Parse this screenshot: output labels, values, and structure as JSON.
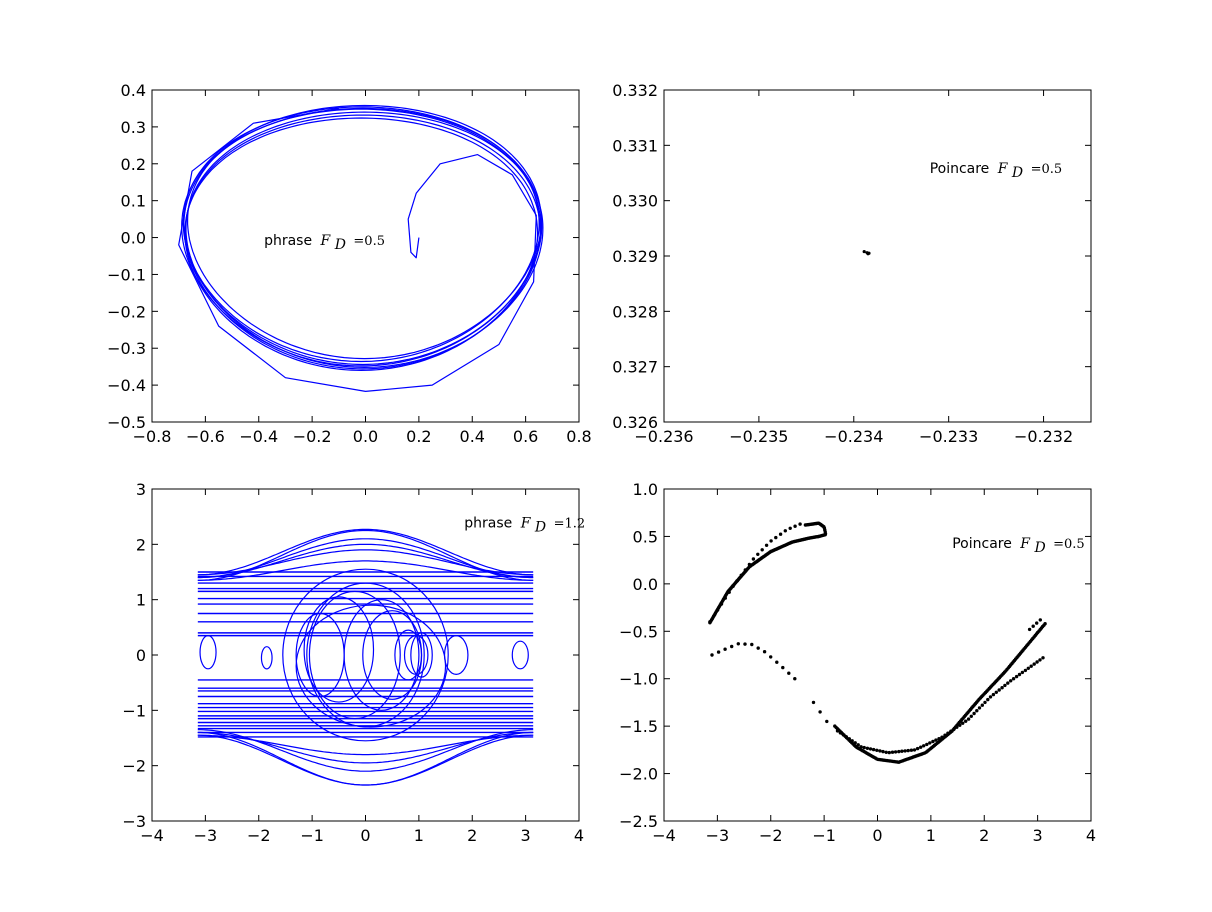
{
  "chart_data": [
    {
      "id": "phase-fd-0.5",
      "type": "line",
      "color": "#0000ff",
      "xlim": [
        -0.8,
        0.8
      ],
      "ylim": [
        -0.5,
        0.4
      ],
      "xticks": [
        "−0.8",
        "−0.6",
        "−0.4",
        "−0.2",
        "0.0",
        "0.2",
        "0.4",
        "0.6",
        "0.8"
      ],
      "yticks": [
        "−0.5",
        "−0.4",
        "−0.3",
        "−0.2",
        "−0.1",
        "0.0",
        "0.1",
        "0.2",
        "0.3",
        "0.4"
      ],
      "annotation": {
        "word": "phrase",
        "symbol": "F",
        "subscript": "D",
        "eq": "=0.5",
        "x": -0.38,
        "y": -0.02
      },
      "attractor": {
        "center_x": -0.01,
        "center_y": 0.0,
        "rx": 0.67,
        "ry": 0.348
      },
      "transient": [
        [
          0.2,
          0.0
        ],
        [
          0.19,
          -0.055
        ],
        [
          0.17,
          -0.04
        ],
        [
          0.16,
          0.05
        ],
        [
          0.19,
          0.12
        ],
        [
          0.28,
          0.2
        ],
        [
          0.42,
          0.225
        ],
        [
          0.55,
          0.17
        ],
        [
          0.64,
          0.06
        ],
        [
          0.63,
          -0.12
        ],
        [
          0.5,
          -0.29
        ],
        [
          0.25,
          -0.4
        ],
        [
          0.0,
          -0.417
        ],
        [
          -0.3,
          -0.38
        ],
        [
          -0.55,
          -0.24
        ],
        [
          -0.7,
          -0.02
        ],
        [
          -0.65,
          0.18
        ],
        [
          -0.42,
          0.31
        ],
        [
          -0.1,
          0.35
        ]
      ]
    },
    {
      "id": "poincare-fd-0.5",
      "type": "scatter",
      "color": "#000000",
      "xlim": [
        -0.236,
        -0.2315
      ],
      "ylim": [
        0.326,
        0.332
      ],
      "xticks": [
        "−0.236",
        "−0.235",
        "−0.234",
        "−0.233",
        "−0.232"
      ],
      "yticks": [
        "0.326",
        "0.327",
        "0.328",
        "0.329",
        "0.330",
        "0.331",
        "0.332"
      ],
      "annotation": {
        "word": "Poincare",
        "symbol": "F",
        "subscript": "D",
        "eq": "=0.5",
        "x": -0.2332,
        "y": 0.3305
      },
      "points": [
        [
          -0.23389,
          0.32908
        ],
        [
          -0.23386,
          0.32906
        ],
        [
          -0.23384,
          0.32905
        ],
        [
          -0.23385,
          0.32904
        ]
      ]
    },
    {
      "id": "phase-fd-1.2",
      "type": "line",
      "color": "#0000ff",
      "xlim": [
        -4,
        4
      ],
      "ylim": [
        -3,
        3
      ],
      "xticks": [
        "−4",
        "−3",
        "−2",
        "−1",
        "0",
        "1",
        "2",
        "3",
        "4"
      ],
      "yticks": [
        "−3",
        "−2",
        "−1",
        "0",
        "1",
        "2",
        "3"
      ],
      "annotation": {
        "word": "phrase",
        "symbol": "F",
        "subscript": "D",
        "eq": "=1.2",
        "x": 1.85,
        "y": 2.3
      },
      "x_range": [
        -3.14159,
        3.14159
      ],
      "horizontal_levels": [
        1.5,
        1.42,
        1.3,
        1.2,
        1.15,
        1.02,
        0.92,
        0.75,
        0.6,
        0.4,
        0.35,
        -0.45,
        -0.6,
        -0.65,
        -0.75,
        -0.88,
        -0.95,
        -1.02,
        -1.1,
        -1.15,
        -1.22,
        -1.28,
        -1.33,
        -1.4,
        -1.48
      ],
      "wave_amplitudes": [
        0.45,
        0.7,
        0.9,
        0.82,
        0.6,
        0.35,
        -0.35,
        -0.55,
        -0.75,
        -0.9,
        -0.95
      ],
      "loops": [
        [
          0.0,
          0.0,
          1.55,
          1.55
        ],
        [
          0.0,
          0.0,
          1.1,
          1.3
        ],
        [
          -0.2,
          0.0,
          0.85,
          1.15
        ],
        [
          0.3,
          0.0,
          0.7,
          1.0
        ],
        [
          0.5,
          0.0,
          0.55,
          0.8
        ],
        [
          -0.85,
          0.0,
          0.45,
          0.75
        ],
        [
          0.8,
          0.0,
          0.25,
          0.45
        ],
        [
          0.95,
          0.0,
          0.22,
          0.35
        ],
        [
          1.05,
          0.0,
          0.2,
          0.4
        ],
        [
          1.7,
          0.0,
          0.22,
          0.35
        ],
        [
          -1.85,
          -0.05,
          0.1,
          0.2
        ],
        [
          -2.95,
          0.05,
          0.15,
          0.3
        ],
        [
          2.9,
          0.0,
          0.15,
          0.25
        ],
        [
          0.1,
          -0.2,
          1.4,
          1.1
        ],
        [
          -0.5,
          0.1,
          0.65,
          0.95
        ]
      ]
    },
    {
      "id": "poincare-fd-0.5-b",
      "type": "scatter",
      "color": "#000000",
      "xlim": [
        -4,
        4
      ],
      "ylim": [
        -2.5,
        1.0
      ],
      "xticks": [
        "−4",
        "−3",
        "−2",
        "−1",
        "0",
        "1",
        "2",
        "3",
        "4"
      ],
      "yticks": [
        "−2.5",
        "−2.0",
        "−1.5",
        "−1.0",
        "−0.5",
        "0.0",
        "0.5",
        "1.0"
      ],
      "annotation": {
        "word": "Poincare",
        "symbol": "F",
        "subscript": "D",
        "eq": "=0.5",
        "x": 1.4,
        "y": 0.38
      },
      "curves": [
        {
          "points": [
            [
              -3.14,
              -0.41
            ],
            [
              -2.8,
              -0.08
            ],
            [
              -2.4,
              0.18
            ],
            [
              -2.0,
              0.34
            ],
            [
              -1.6,
              0.44
            ],
            [
              -1.3,
              0.48
            ],
            [
              -1.1,
              0.5
            ],
            [
              -0.97,
              0.52
            ],
            [
              -1.0,
              0.6
            ],
            [
              -1.1,
              0.64
            ],
            [
              -1.35,
              0.62
            ]
          ],
          "count": 140
        },
        {
          "points": [
            [
              -3.14,
              -0.4
            ],
            [
              -2.7,
              -0.02
            ],
            [
              -2.3,
              0.28
            ],
            [
              -2.0,
              0.45
            ],
            [
              -1.7,
              0.57
            ],
            [
              -1.45,
              0.63
            ]
          ],
          "count": 22
        },
        {
          "points": [
            [
              -3.1,
              -0.75
            ],
            [
              -2.9,
              -0.7
            ],
            [
              -2.6,
              -0.63
            ],
            [
              -2.35,
              -0.64
            ],
            [
              -2.1,
              -0.72
            ],
            [
              -1.8,
              -0.87
            ],
            [
              -1.55,
              -1.0
            ]
          ],
          "count": 14
        },
        {
          "points": [
            [
              -1.2,
              -1.25
            ],
            [
              -0.95,
              -1.45
            ]
          ],
          "count": 3
        },
        {
          "points": [
            [
              -0.8,
              -1.5
            ],
            [
              -0.4,
              -1.72
            ],
            [
              0.0,
              -1.85
            ],
            [
              0.4,
              -1.88
            ],
            [
              0.9,
              -1.78
            ],
            [
              1.4,
              -1.55
            ],
            [
              1.9,
              -1.22
            ],
            [
              2.4,
              -0.92
            ],
            [
              2.8,
              -0.65
            ],
            [
              3.14,
              -0.42
            ]
          ],
          "count": 160
        },
        {
          "points": [
            [
              -0.75,
              -1.55
            ],
            [
              -0.3,
              -1.72
            ],
            [
              0.2,
              -1.78
            ],
            [
              0.7,
              -1.75
            ],
            [
              1.2,
              -1.62
            ],
            [
              1.7,
              -1.43
            ],
            [
              2.1,
              -1.2
            ],
            [
              2.5,
              -1.02
            ],
            [
              2.8,
              -0.9
            ],
            [
              3.1,
              -0.78
            ]
          ],
          "count": 70
        },
        {
          "points": [
            [
              2.85,
              -0.48
            ],
            [
              3.05,
              -0.38
            ]
          ],
          "count": 4
        }
      ]
    }
  ]
}
